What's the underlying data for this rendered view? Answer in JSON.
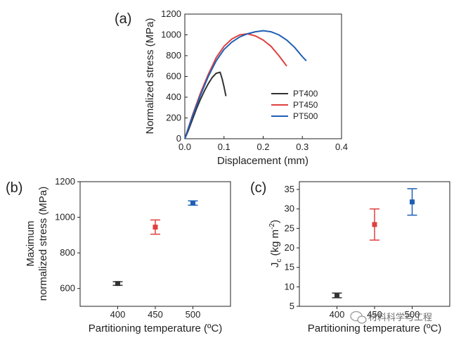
{
  "chart_data": [
    {
      "panel": "(a)",
      "type": "line",
      "xlabel": "Displacement (mm)",
      "ylabel": "Normalized stress (MPa)",
      "xlim": [
        0,
        0.4
      ],
      "ylim": [
        0,
        1200
      ],
      "xticks": [
        "0.0",
        "0.1",
        "0.2",
        "0.3",
        "0.4"
      ],
      "yticks": [
        "0",
        "200",
        "400",
        "600",
        "800",
        "1000",
        "1200"
      ],
      "legend_position": "lower-right",
      "series": [
        {
          "name": "PT400",
          "color": "#333333",
          "x": [
            0,
            0.01,
            0.02,
            0.03,
            0.04,
            0.05,
            0.06,
            0.07,
            0.08,
            0.09,
            0.095,
            0.1,
            0.105
          ],
          "y": [
            0,
            90,
            190,
            290,
            380,
            460,
            530,
            590,
            630,
            640,
            580,
            500,
            410
          ]
        },
        {
          "name": "PT450",
          "color": "#e04040",
          "x": [
            0,
            0.02,
            0.04,
            0.06,
            0.08,
            0.1,
            0.12,
            0.14,
            0.16,
            0.18,
            0.2,
            0.22,
            0.24,
            0.25,
            0.26
          ],
          "y": [
            0,
            230,
            440,
            620,
            780,
            890,
            960,
            1000,
            1010,
            990,
            950,
            890,
            800,
            750,
            700
          ]
        },
        {
          "name": "PT500",
          "color": "#1f5fb5",
          "x": [
            0,
            0.02,
            0.04,
            0.06,
            0.08,
            0.1,
            0.12,
            0.14,
            0.16,
            0.18,
            0.2,
            0.22,
            0.24,
            0.26,
            0.28,
            0.3,
            0.31
          ],
          "y": [
            0,
            220,
            420,
            600,
            750,
            860,
            930,
            980,
            1010,
            1030,
            1040,
            1030,
            1000,
            950,
            880,
            790,
            750
          ]
        }
      ]
    },
    {
      "panel": "(b)",
      "type": "scatter",
      "xlabel": "Partitioning temperature (ºC)",
      "ylabel": [
        "Maximum",
        "normalized stress (MPa)"
      ],
      "xlim": [
        350,
        550
      ],
      "ylim": [
        500,
        1200
      ],
      "xticks": [
        "400",
        "450",
        "500"
      ],
      "yticks": [
        "600",
        "800",
        "1000",
        "1200"
      ],
      "points": [
        {
          "x": 400,
          "y": 628,
          "err": 10,
          "color": "#333333"
        },
        {
          "x": 450,
          "y": 945,
          "err": 40,
          "color": "#e04040"
        },
        {
          "x": 500,
          "y": 1080,
          "err": 12,
          "color": "#1f5fb5"
        }
      ]
    },
    {
      "panel": "(c)",
      "type": "scatter",
      "xlabel": "Partitioning temperature (ºC)",
      "ylabel_main": "J",
      "ylabel_sub": "c",
      "ylabel_rest": " (kg m",
      "ylabel_sup": "-2",
      "ylabel_end": ")",
      "xlim": [
        350,
        550
      ],
      "ylim": [
        5,
        37
      ],
      "xticks": [
        "400",
        "450",
        "500"
      ],
      "yticks": [
        "5",
        "10",
        "15",
        "20",
        "25",
        "30",
        "35"
      ],
      "points": [
        {
          "x": 400,
          "y": 7.8,
          "err": 0.6,
          "color": "#333333"
        },
        {
          "x": 450,
          "y": 26,
          "err": 4,
          "color": "#e04040"
        },
        {
          "x": 500,
          "y": 31.8,
          "err": 3.4,
          "color": "#1f5fb5"
        }
      ]
    }
  ],
  "watermark": {
    "text": "材料科学与工程",
    "icon": "wechat-icon"
  }
}
